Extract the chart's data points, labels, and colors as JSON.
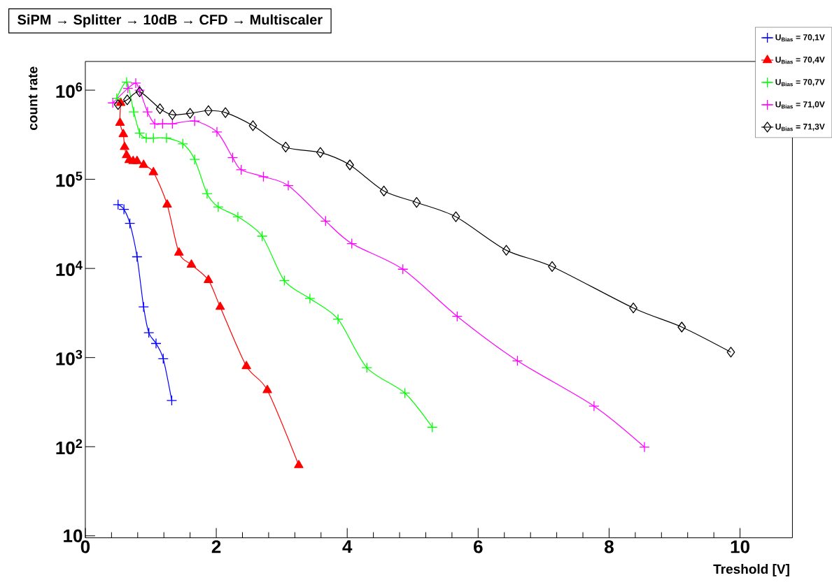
{
  "chart_data": {
    "type": "line",
    "title": "SiPM → Splitter → 10dB → CFD → Multiscaler",
    "xlabel": "Treshold [V]",
    "ylabel": "count rate",
    "log": "y",
    "legend": "top right",
    "xlim": [
      0,
      10.8
    ],
    "ylim": [
      9.5,
      2100000
    ],
    "xticks": [
      0,
      2,
      4,
      6,
      8,
      10
    ],
    "yticks": [
      {
        "value": 10,
        "label": "10"
      },
      {
        "value": 100,
        "label": "10$^{2}$"
      },
      {
        "value": 1000,
        "label": "10$^{3}$"
      },
      {
        "value": 10000,
        "label": "10$^{4}$"
      },
      {
        "value": 100000,
        "label": "10$^{5}$"
      },
      {
        "value": 1000000,
        "label": "10$^{6}$"
      }
    ],
    "series": [
      {
        "name": "U$_{Bias}$ = 70,1V",
        "color": "#0000ff",
        "marker": "cross",
        "x": [
          0.5,
          0.59,
          0.68,
          0.79,
          0.89,
          0.97,
          1.08,
          1.19,
          1.32
        ],
        "values": [
          52000,
          46000,
          32000,
          13500,
          3700,
          1900,
          1440,
          970,
          330
        ]
      },
      {
        "name": "U$_{Bias}$ = 70,4V",
        "color": "#ff0000",
        "marker": "triangle",
        "x": [
          0.54,
          0.53,
          0.58,
          0.6,
          0.63,
          0.67,
          0.73,
          0.79,
          0.89,
          1.04,
          1.25,
          1.43,
          1.62,
          1.88,
          2.06,
          2.46,
          2.78,
          3.26
        ],
        "values": [
          720000,
          430000,
          320000,
          230000,
          186000,
          164000,
          160000,
          160000,
          145000,
          120000,
          52000,
          15000,
          11000,
          7400,
          3700,
          800,
          430,
          62
        ]
      },
      {
        "name": "U$_{Bias}$ = 70,7V",
        "color": "#00ff00",
        "marker": "cross",
        "x": [
          0.48,
          0.63,
          0.74,
          0.83,
          0.93,
          1.04,
          1.24,
          1.49,
          1.67,
          1.86,
          2.03,
          2.33,
          2.7,
          3.04,
          3.43,
          3.86,
          4.3,
          4.88,
          5.3
        ],
        "values": [
          810000,
          1230000,
          570000,
          330000,
          290000,
          290000,
          290000,
          250000,
          167000,
          69000,
          49000,
          38000,
          23000,
          7300,
          4600,
          2700,
          770,
          400,
          165
        ]
      },
      {
        "name": "U$_{Bias}$ = 71,0V",
        "color": "#ff00ff",
        "marker": "cross",
        "x": [
          0.42,
          0.65,
          0.77,
          0.83,
          0.95,
          1.06,
          1.18,
          1.33,
          1.67,
          2.01,
          2.25,
          2.38,
          2.72,
          3.1,
          3.67,
          4.07,
          4.85,
          5.68,
          6.6,
          7.77,
          8.54
        ],
        "values": [
          720000,
          1050000,
          1200000,
          1000000,
          570000,
          420000,
          420000,
          420000,
          450000,
          340000,
          175000,
          128000,
          107000,
          85000,
          34000,
          19000,
          9800,
          2900,
          920,
          285,
          99
        ]
      },
      {
        "name": "U$_{Bias}$ = 71,3V",
        "color": "#000000",
        "marker": "diamond",
        "x": [
          0.5,
          0.64,
          0.83,
          1.14,
          1.33,
          1.6,
          1.88,
          2.14,
          2.56,
          3.06,
          3.59,
          4.04,
          4.56,
          5.06,
          5.66,
          6.43,
          7.13,
          8.37,
          9.11,
          9.86
        ],
        "values": [
          690000,
          780000,
          960000,
          620000,
          530000,
          550000,
          590000,
          560000,
          400000,
          230000,
          200000,
          145000,
          74000,
          55000,
          38000,
          16000,
          10500,
          3600,
          2200,
          1150
        ]
      }
    ]
  }
}
